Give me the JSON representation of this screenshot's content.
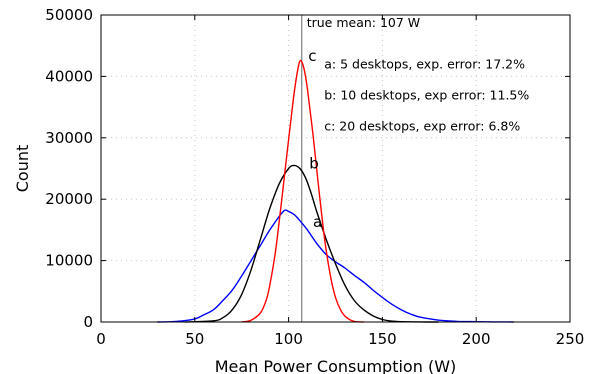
{
  "chart_data": {
    "type": "line",
    "title": "",
    "xlabel": "Mean Power Consumption (W)",
    "ylabel": "Count",
    "xlim": [
      0,
      250
    ],
    "ylim": [
      0,
      50000
    ],
    "xticks": [
      0,
      50,
      100,
      150,
      200,
      250
    ],
    "yticks": [
      0,
      10000,
      20000,
      30000,
      40000,
      50000
    ],
    "grid": true,
    "reference_line": {
      "x": 107,
      "label": "true mean: 107 W"
    },
    "annotations": [
      "a: 5 desktops, exp. error: 17.2%",
      "b: 10 desktops, exp error: 11.5%",
      "c: 20 desktops, exp error: 6.8%"
    ],
    "series": [
      {
        "name": "a",
        "color": "#0000ff",
        "x": [
          30,
          40,
          50,
          55,
          60,
          65,
          70,
          75,
          80,
          85,
          90,
          95,
          98,
          100,
          103,
          106,
          110,
          115,
          120,
          125,
          130,
          135,
          140,
          145,
          150,
          155,
          160,
          165,
          170,
          180,
          190,
          200,
          210,
          220
        ],
        "y": [
          0,
          100,
          500,
          1200,
          2000,
          3500,
          5200,
          7500,
          10000,
          12500,
          15000,
          17200,
          18200,
          18000,
          17500,
          16500,
          15000,
          12800,
          11000,
          9800,
          8800,
          7600,
          6500,
          5200,
          4000,
          2900,
          2000,
          1300,
          800,
          300,
          100,
          50,
          20,
          0
        ]
      },
      {
        "name": "b",
        "color": "#000000",
        "x": [
          45,
          60,
          65,
          70,
          75,
          80,
          85,
          90,
          95,
          100,
          103,
          106,
          109,
          112,
          115,
          120,
          125,
          130,
          135,
          140,
          145,
          150,
          155,
          160,
          170,
          180
        ],
        "y": [
          0,
          200,
          700,
          2000,
          4500,
          8500,
          13500,
          18500,
          22500,
          25000,
          25500,
          25000,
          23500,
          21000,
          18000,
          13500,
          9500,
          6000,
          3500,
          2000,
          1000,
          400,
          150,
          50,
          10,
          0
        ]
      },
      {
        "name": "c",
        "color": "#ff0000",
        "x": [
          75,
          80,
          85,
          88,
          90,
          93,
          96,
          99,
          102,
          104,
          106,
          108,
          110,
          113,
          116,
          119,
          122,
          125,
          128,
          131,
          135,
          140
        ],
        "y": [
          0,
          300,
          1500,
          3500,
          6000,
          11500,
          19000,
          27000,
          35000,
          39500,
          42500,
          41500,
          38000,
          30500,
          22000,
          14000,
          8000,
          4000,
          1800,
          700,
          100,
          0
        ]
      }
    ]
  }
}
